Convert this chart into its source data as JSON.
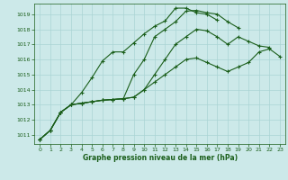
{
  "title": "Graphe pression niveau de la mer (hPa)",
  "bg_color": "#cce9e9",
  "line_color": "#1a5e1a",
  "grid_color": "#aad4d4",
  "xlim": [
    -0.5,
    23.5
  ],
  "ylim": [
    1010.4,
    1019.7
  ],
  "yticks": [
    1011,
    1012,
    1013,
    1014,
    1015,
    1016,
    1017,
    1018,
    1019
  ],
  "xticks": [
    0,
    1,
    2,
    3,
    4,
    5,
    6,
    7,
    8,
    9,
    10,
    11,
    12,
    13,
    14,
    15,
    16,
    17,
    18,
    19,
    20,
    21,
    22,
    23
  ],
  "series": [
    [
      1010.7,
      1011.3,
      1012.5,
      1013.0,
      1013.1,
      1013.2,
      1013.3,
      1013.35,
      1013.4,
      1013.5,
      1014.0,
      1014.5,
      1015.0,
      1015.5,
      1016.0,
      1016.1,
      1015.8,
      1015.5,
      1015.2,
      1015.5,
      1015.8,
      1016.5,
      1016.7,
      1016.2
    ],
    [
      1010.7,
      1011.3,
      1012.5,
      1013.0,
      1013.1,
      1013.2,
      1013.3,
      1013.35,
      1013.4,
      1013.5,
      1014.0,
      1015.0,
      1016.0,
      1017.0,
      1017.5,
      1018.0,
      1017.9,
      1017.5,
      1017.0,
      1017.5,
      1017.2,
      1016.9,
      1016.8,
      null
    ],
    [
      1010.7,
      1011.3,
      1012.5,
      1013.0,
      1013.1,
      1013.2,
      1013.3,
      1013.35,
      1013.4,
      1015.0,
      1016.0,
      1017.5,
      1018.0,
      1018.5,
      1019.2,
      1019.25,
      1019.1,
      1019.0,
      1018.5,
      1018.1,
      null,
      null,
      null,
      null
    ],
    [
      1010.7,
      1011.3,
      1012.5,
      1013.0,
      1013.8,
      1014.8,
      1015.9,
      1016.5,
      1016.5,
      1017.1,
      1017.7,
      1018.2,
      1018.55,
      1019.4,
      1019.4,
      1019.1,
      1019.0,
      1018.6,
      null,
      null,
      null,
      null,
      null,
      null
    ]
  ]
}
